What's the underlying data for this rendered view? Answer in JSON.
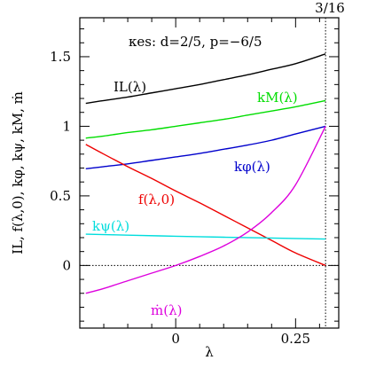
{
  "chart_data": {
    "type": "line",
    "header": "κes: d=2/5, p=−6/5",
    "top_marker_label": "3/16",
    "top_marker_x": 0.3125,
    "xlabel": "λ",
    "ylabel": "IL, f(λ,0), kφ, kψ, kM, ṁ",
    "xlim": [
      -0.2,
      0.34
    ],
    "ylim": [
      -0.45,
      1.78
    ],
    "x_ticks": [
      0,
      0.25
    ],
    "x_tick_labels": [
      "0",
      "0.25"
    ],
    "y_ticks": [
      0,
      0.5,
      1,
      1.5
    ],
    "y_tick_labels": [
      "0",
      "0.5",
      "1",
      "1.5"
    ],
    "reference_line_y": 0,
    "series": [
      {
        "name": "IL(λ)",
        "color": "#000000",
        "x": [
          -0.1875,
          -0.15,
          -0.1,
          -0.05,
          0,
          0.05,
          0.1,
          0.15,
          0.2,
          0.25,
          0.3125
        ],
        "y": [
          1.165,
          1.185,
          1.21,
          1.24,
          1.27,
          1.3,
          1.335,
          1.37,
          1.41,
          1.45,
          1.52
        ]
      },
      {
        "name": "kM(λ)",
        "color": "#00dd00",
        "x": [
          -0.1875,
          -0.15,
          -0.1,
          -0.05,
          0,
          0.05,
          0.1,
          0.15,
          0.2,
          0.25,
          0.3125
        ],
        "y": [
          0.915,
          0.93,
          0.955,
          0.975,
          1.0,
          1.025,
          1.05,
          1.08,
          1.11,
          1.14,
          1.185
        ]
      },
      {
        "name": "kφ(λ)",
        "color": "#0000cc",
        "x": [
          -0.1875,
          -0.15,
          -0.1,
          -0.05,
          0,
          0.05,
          0.1,
          0.15,
          0.2,
          0.25,
          0.3125
        ],
        "y": [
          0.695,
          0.71,
          0.73,
          0.755,
          0.78,
          0.805,
          0.835,
          0.865,
          0.9,
          0.945,
          1.0
        ]
      },
      {
        "name": "f(λ,0)",
        "color": "#ee0000",
        "x": [
          -0.1875,
          -0.15,
          -0.1,
          -0.05,
          0,
          0.05,
          0.1,
          0.15,
          0.2,
          0.25,
          0.3125
        ],
        "y": [
          0.87,
          0.8,
          0.71,
          0.625,
          0.535,
          0.45,
          0.36,
          0.27,
          0.18,
          0.09,
          0.0
        ]
      },
      {
        "name": "kψ(λ)",
        "color": "#00dddd",
        "x": [
          -0.1875,
          -0.1,
          0,
          0.1,
          0.2,
          0.3125
        ],
        "y": [
          0.225,
          0.218,
          0.21,
          0.203,
          0.197,
          0.19
        ]
      },
      {
        "name": "ṁ(λ)",
        "color": "#dd00dd",
        "x": [
          -0.1875,
          -0.15,
          -0.1,
          -0.05,
          0,
          0.05,
          0.1,
          0.15,
          0.2,
          0.25,
          0.3125
        ],
        "y": [
          -0.2,
          -0.165,
          -0.11,
          -0.055,
          0.0,
          0.065,
          0.14,
          0.24,
          0.38,
          0.58,
          1.0
        ]
      }
    ]
  }
}
